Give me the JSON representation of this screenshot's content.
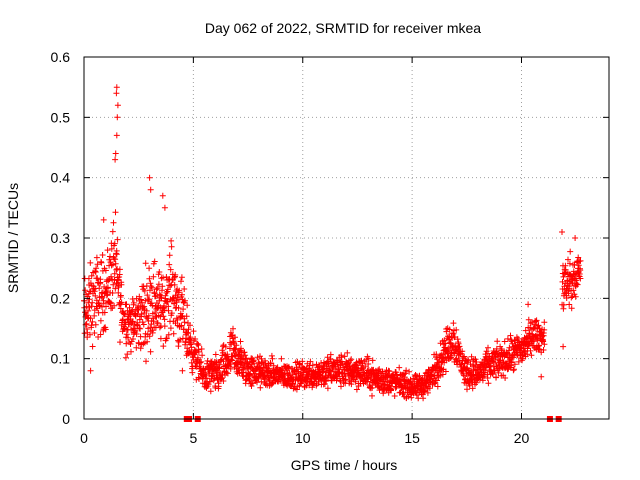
{
  "chart_data": {
    "type": "scatter",
    "title": "Day 062 of 2022, SRMTID for receiver mkea",
    "xlabel": "GPS time / hours",
    "ylabel": "SRMTID / TECUs",
    "xlim": [
      0,
      24
    ],
    "ylim": [
      0,
      0.6
    ],
    "xticks": [
      "0",
      "5",
      "10",
      "15",
      "20"
    ],
    "xtick_values": [
      0,
      5,
      10,
      15,
      20
    ],
    "yticks": [
      "0",
      "0.1",
      "0.2",
      "0.3",
      "0.4",
      "0.5",
      "0.6"
    ],
    "ytick_values": [
      0,
      0.1,
      0.2,
      0.3,
      0.4,
      0.5,
      0.6
    ],
    "grid": true,
    "marker": "+",
    "color": "#ff0000",
    "envelope": [
      {
        "x": 0.0,
        "lo": 0.08,
        "hi": 0.26
      },
      {
        "x": 0.5,
        "lo": 0.1,
        "hi": 0.3
      },
      {
        "x": 1.0,
        "lo": 0.12,
        "hi": 0.3
      },
      {
        "x": 1.4,
        "lo": 0.14,
        "hi": 0.38
      },
      {
        "x": 1.8,
        "lo": 0.09,
        "hi": 0.24
      },
      {
        "x": 2.3,
        "lo": 0.09,
        "hi": 0.22
      },
      {
        "x": 2.8,
        "lo": 0.08,
        "hi": 0.28
      },
      {
        "x": 3.2,
        "lo": 0.1,
        "hi": 0.3
      },
      {
        "x": 3.6,
        "lo": 0.1,
        "hi": 0.26
      },
      {
        "x": 4.0,
        "lo": 0.12,
        "hi": 0.32
      },
      {
        "x": 4.5,
        "lo": 0.08,
        "hi": 0.25
      },
      {
        "x": 5.0,
        "lo": 0.06,
        "hi": 0.16
      },
      {
        "x": 5.5,
        "lo": 0.03,
        "hi": 0.11
      },
      {
        "x": 6.2,
        "lo": 0.03,
        "hi": 0.12
      },
      {
        "x": 6.8,
        "lo": 0.05,
        "hi": 0.17
      },
      {
        "x": 7.5,
        "lo": 0.04,
        "hi": 0.12
      },
      {
        "x": 8.5,
        "lo": 0.04,
        "hi": 0.11
      },
      {
        "x": 9.5,
        "lo": 0.04,
        "hi": 0.1
      },
      {
        "x": 10.5,
        "lo": 0.04,
        "hi": 0.11
      },
      {
        "x": 11.5,
        "lo": 0.04,
        "hi": 0.12
      },
      {
        "x": 12.5,
        "lo": 0.04,
        "hi": 0.12
      },
      {
        "x": 13.5,
        "lo": 0.03,
        "hi": 0.1
      },
      {
        "x": 14.5,
        "lo": 0.03,
        "hi": 0.09
      },
      {
        "x": 15.2,
        "lo": 0.02,
        "hi": 0.08
      },
      {
        "x": 15.8,
        "lo": 0.03,
        "hi": 0.1
      },
      {
        "x": 16.4,
        "lo": 0.06,
        "hi": 0.15
      },
      {
        "x": 16.9,
        "lo": 0.08,
        "hi": 0.19
      },
      {
        "x": 17.4,
        "lo": 0.04,
        "hi": 0.12
      },
      {
        "x": 18.0,
        "lo": 0.04,
        "hi": 0.11
      },
      {
        "x": 18.6,
        "lo": 0.05,
        "hi": 0.13
      },
      {
        "x": 19.3,
        "lo": 0.06,
        "hi": 0.14
      },
      {
        "x": 20.0,
        "lo": 0.07,
        "hi": 0.16
      },
      {
        "x": 20.5,
        "lo": 0.1,
        "hi": 0.18
      },
      {
        "x": 21.0,
        "lo": 0.1,
        "hi": 0.17
      },
      {
        "x": 21.9,
        "lo": 0.15,
        "hi": 0.3
      },
      {
        "x": 22.3,
        "lo": 0.17,
        "hi": 0.28
      },
      {
        "x": 22.7,
        "lo": 0.2,
        "hi": 0.29
      }
    ],
    "gaps": [
      [
        21.05,
        21.85
      ]
    ],
    "spikes": [
      {
        "x": 1.5,
        "y": 0.55
      },
      {
        "x": 1.48,
        "y": 0.54
      },
      {
        "x": 1.55,
        "y": 0.52
      },
      {
        "x": 1.52,
        "y": 0.5
      },
      {
        "x": 1.5,
        "y": 0.47
      },
      {
        "x": 1.45,
        "y": 0.44
      },
      {
        "x": 1.42,
        "y": 0.43
      },
      {
        "x": 3.0,
        "y": 0.4
      },
      {
        "x": 3.05,
        "y": 0.38
      },
      {
        "x": 3.6,
        "y": 0.37
      },
      {
        "x": 3.7,
        "y": 0.35
      },
      {
        "x": 0.9,
        "y": 0.33
      },
      {
        "x": 0.3,
        "y": 0.08
      },
      {
        "x": 4.3,
        "y": 0.13
      },
      {
        "x": 4.5,
        "y": 0.08
      },
      {
        "x": 20.3,
        "y": 0.19
      },
      {
        "x": 20.9,
        "y": 0.07
      },
      {
        "x": 21.9,
        "y": 0.12
      },
      {
        "x": 21.85,
        "y": 0.31
      },
      {
        "x": 22.45,
        "y": 0.3
      }
    ],
    "gap_markers_x": [
      4.7,
      4.8,
      5.2,
      21.3,
      21.7
    ]
  }
}
